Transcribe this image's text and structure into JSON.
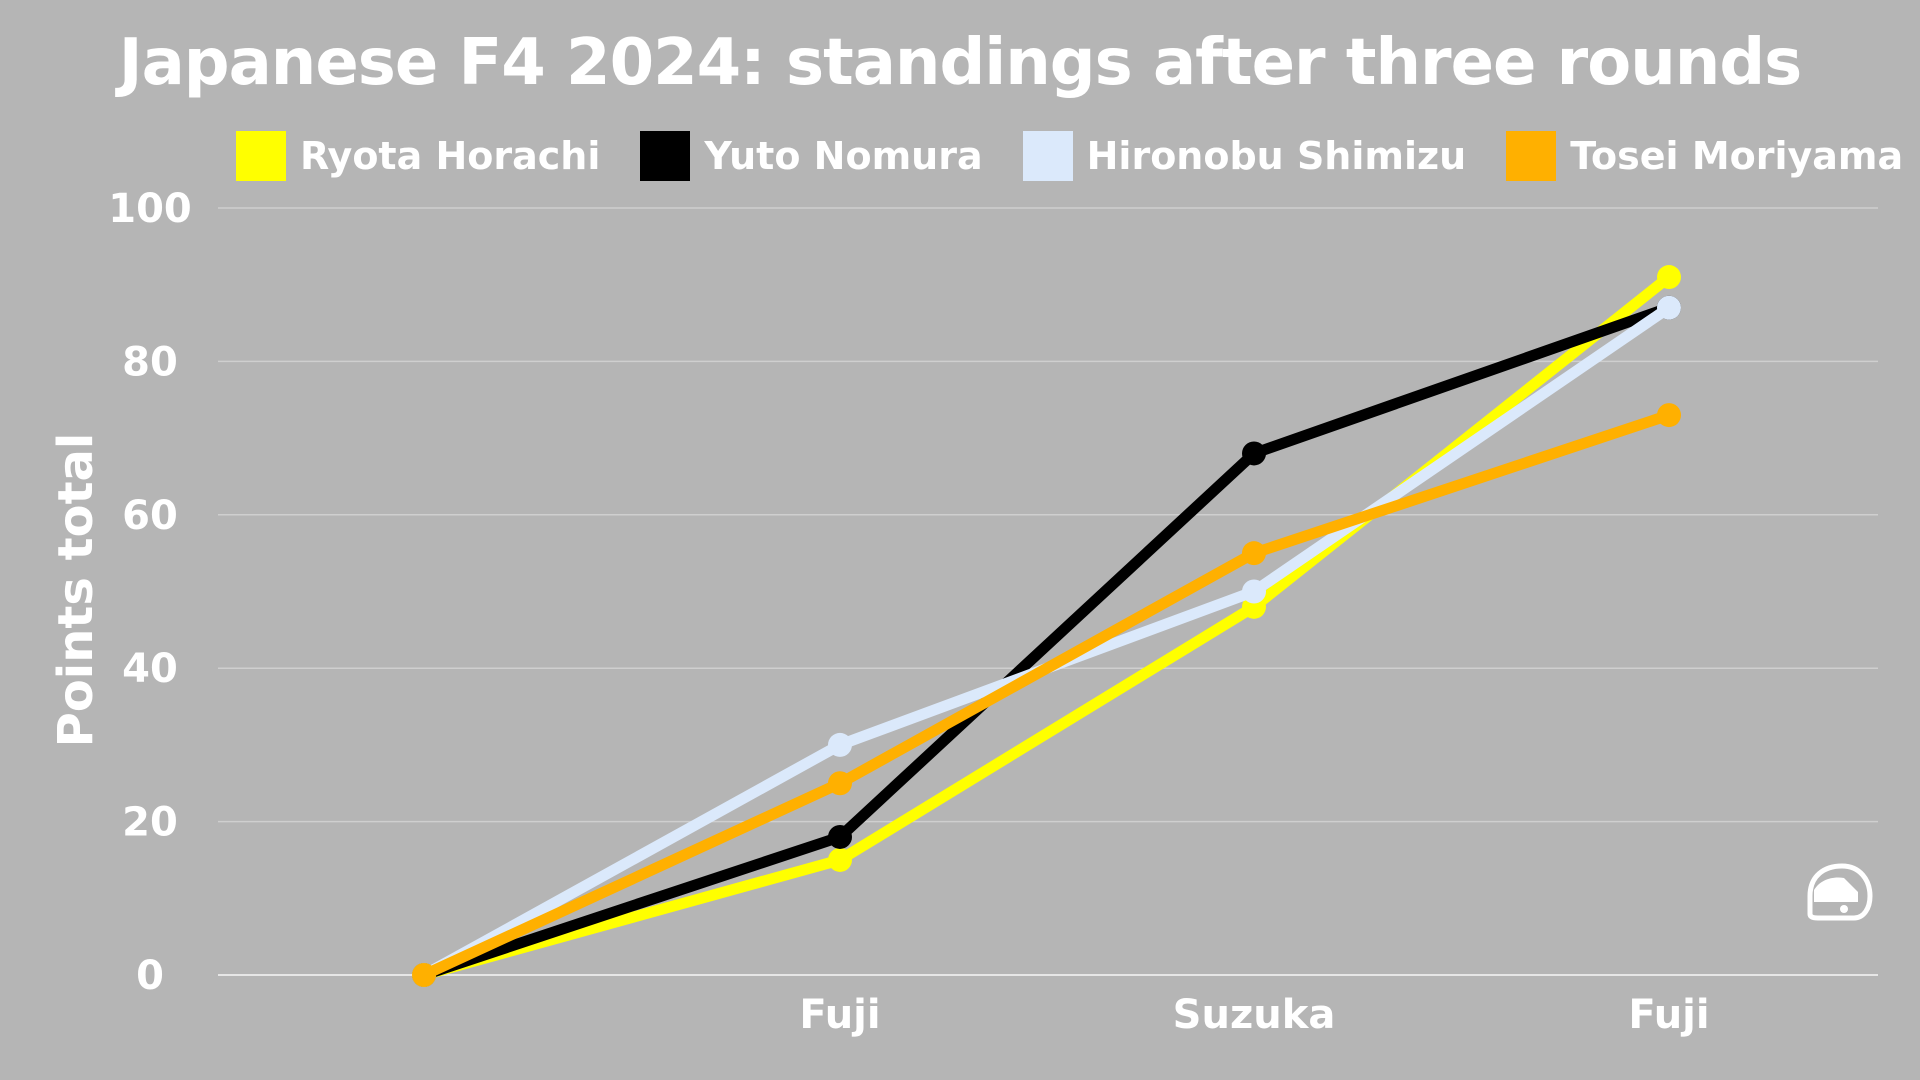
{
  "chart_data": {
    "type": "line",
    "title": "Japanese F4 2024: standings after three rounds",
    "xlabel": "",
    "ylabel": "Points total",
    "categories": [
      "",
      "Fuji",
      "Suzuka",
      "Fuji"
    ],
    "ylim": [
      0,
      100
    ],
    "yticks": [
      0,
      20,
      40,
      60,
      80,
      100
    ],
    "grid": true,
    "legend_position": "top",
    "series": [
      {
        "name": "Ryota Horachi",
        "color": "#ffff00",
        "values": [
          0,
          15,
          48,
          91
        ]
      },
      {
        "name": "Yuto Nomura",
        "color": "#000000",
        "values": [
          0,
          18,
          68,
          87
        ]
      },
      {
        "name": "Hironobu Shimizu",
        "color": "#dbe9fb",
        "values": [
          0,
          30,
          50,
          87
        ]
      },
      {
        "name": "Tosei Moriyama",
        "color": "#ffb000",
        "values": [
          0,
          25,
          55,
          73
        ]
      }
    ]
  },
  "logo": {
    "icon": "helmet-icon",
    "color": "#ffffff"
  }
}
